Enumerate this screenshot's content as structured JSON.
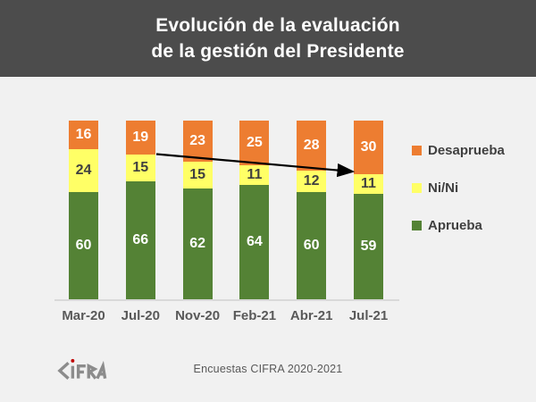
{
  "title": {
    "line1": "Evolución de la evaluación",
    "line2": "de la gestión del Presidente"
  },
  "chart_data": {
    "type": "bar",
    "subtype": "stacked-vertical",
    "categories": [
      "Mar-20",
      "Jul-20",
      "Nov-20",
      "Feb-21",
      "Abr-21",
      "Jul-21"
    ],
    "series": [
      {
        "name": "Aprueba",
        "color": "#548235",
        "label_color": "#FFFFFF",
        "values": [
          60,
          66,
          62,
          64,
          60,
          59
        ]
      },
      {
        "name": "Ni/Ni",
        "color": "#FFFF66",
        "label_color": "#404040",
        "values": [
          24,
          15,
          15,
          11,
          12,
          11
        ]
      },
      {
        "name": "Desaprueba",
        "color": "#ED7D31",
        "label_color": "#FFFFFF",
        "values": [
          16,
          19,
          23,
          25,
          28,
          30
        ]
      }
    ],
    "title": "Evolución de la evaluación de la gestión del Presidente",
    "xlabel": "",
    "ylabel": "",
    "ylim": [
      0,
      100
    ],
    "grid": false,
    "data_labels": "inside-center",
    "legend_position": "right",
    "annotations": [
      {
        "type": "arrow",
        "description": "black trend arrow from top of Ni/Ni segment of Jul-20 to top of Ni/Ni segment of Jul-21, indicating rising disapproval",
        "from": {
          "category": "Jul-20",
          "value": 81
        },
        "to": {
          "category": "Jul-21",
          "value": 71
        }
      }
    ]
  },
  "legend": {
    "items": [
      {
        "label": "Desaprueba",
        "color": "#ED7D31"
      },
      {
        "label": "Ni/Ni",
        "color": "#FFFF66"
      },
      {
        "label": "Aprueba",
        "color": "#548235"
      }
    ]
  },
  "footer": {
    "logo_text": "CIFRA",
    "source_text": "Encuestas CIFRA 2020-2021"
  },
  "colors": {
    "banner_bg": "#4C4C4C",
    "page_bg": "#F1F1F1",
    "axis_line": "#D9D9D9",
    "axis_label": "#595959",
    "legend_text": "#404040",
    "arrow": "#000000",
    "logo_gray": "#8C8C8C",
    "logo_dot_red": "#C00000"
  }
}
